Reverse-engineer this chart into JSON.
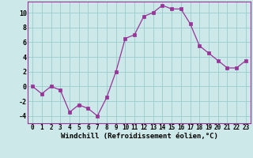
{
  "x": [
    0,
    1,
    2,
    3,
    4,
    5,
    6,
    7,
    8,
    9,
    10,
    11,
    12,
    13,
    14,
    15,
    16,
    17,
    18,
    19,
    20,
    21,
    22,
    23
  ],
  "y": [
    0,
    -1,
    0,
    -0.5,
    -3.5,
    -2.5,
    -3,
    -4,
    -1.5,
    2,
    6.5,
    7,
    9.5,
    10,
    11,
    10.5,
    10.5,
    8.5,
    5.5,
    4.5,
    3.5,
    2.5,
    2.5,
    3.5
  ],
  "line_color": "#993399",
  "marker_color": "#993399",
  "bg_color": "#cce8e8",
  "grid_color": "#99cccc",
  "xlabel": "Windchill (Refroidissement éolien,°C)",
  "xlabel_fontsize": 6.5,
  "xlim": [
    -0.5,
    23.5
  ],
  "ylim": [
    -5,
    11.5
  ],
  "yticks": [
    -4,
    -2,
    0,
    2,
    4,
    6,
    8,
    10
  ],
  "xtick_labels": [
    "0",
    "1",
    "2",
    "3",
    "4",
    "5",
    "6",
    "7",
    "8",
    "9",
    "10",
    "11",
    "12",
    "13",
    "14",
    "15",
    "16",
    "17",
    "18",
    "19",
    "20",
    "21",
    "22",
    "23"
  ],
  "tick_fontsize": 5.5,
  "spine_color": "#993399",
  "line_width": 0.9,
  "marker_size": 2.2
}
